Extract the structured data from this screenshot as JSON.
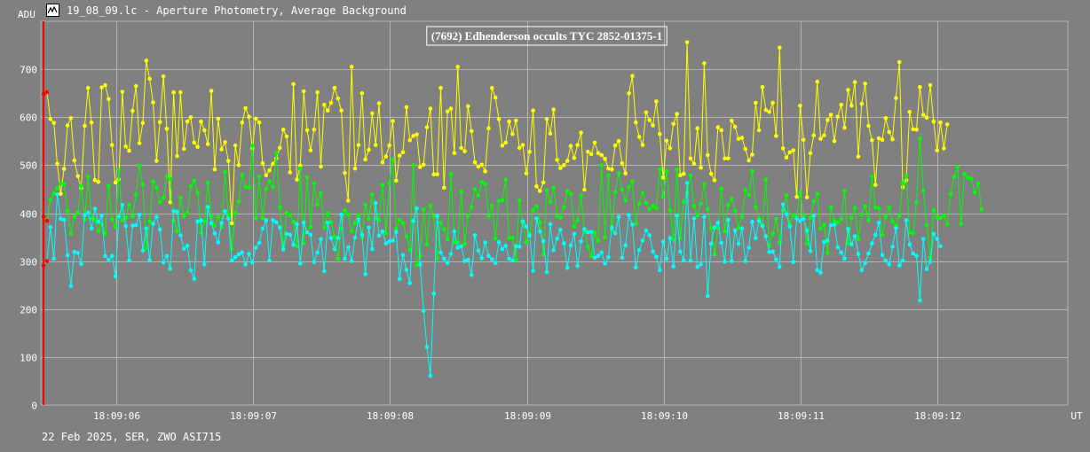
{
  "window": {
    "title": "19_08_09.lc - Aperture Photometry, Average Background",
    "icon": "chart-app-icon"
  },
  "footer": "22 Feb 2025, SER, ZWO ASI715",
  "colors": {
    "background": "#808080",
    "grid": "#b4b4b4",
    "series_yellow": "#ffff00",
    "series_green": "#00ff00",
    "series_cyan": "#00ffff",
    "marker": "#ff0000"
  },
  "chart_data": {
    "type": "line",
    "title": "(7692) Edhenderson occults TYC 2852-01375-1",
    "ylabel": "ADU",
    "xlabel": "UT",
    "ylim": [
      0,
      800
    ],
    "yticks": [
      0,
      100,
      200,
      300,
      400,
      500,
      600,
      700
    ],
    "xlim": [
      5.45,
      12.95
    ],
    "xticks": [
      {
        "t": 6,
        "label": "18:09:06"
      },
      {
        "t": 7,
        "label": "18:09:07"
      },
      {
        "t": 8,
        "label": "18:09:08"
      },
      {
        "t": 9,
        "label": "18:09:09"
      },
      {
        "t": 10,
        "label": "18:09:10"
      },
      {
        "t": 11,
        "label": "18:09:11"
      },
      {
        "t": 12,
        "label": "18:09:12"
      }
    ],
    "grid": true,
    "frame_start_marker_t": 5.47,
    "series": [
      {
        "color": "#ffff00",
        "t0": 5.47,
        "dt": 0.025,
        "values": [
          648,
          652,
          596,
          588,
          503,
          440,
          492,
          583,
          598,
          510,
          477,
          452,
          582,
          661,
          589,
          469,
          465,
          662,
          667,
          638,
          542,
          464,
          470,
          653,
          539,
          530,
          613,
          665,
          546,
          588,
          718,
          680,
          631,
          509,
          590,
          685,
          576,
          423,
          652,
          519,
          652,
          534,
          591,
          600,
          547,
          538,
          591,
          573,
          544,
          655,
          491,
          597,
          533,
          548,
          509,
          379,
          541,
          500,
          589,
          619,
          601,
          535,
          597,
          589,
          504,
          479,
          489,
          503,
          514,
          536,
          574,
          560,
          485,
          669,
          470,
          499,
          654,
          573,
          531,
          574,
          652,
          497,
          626,
          614,
          630,
          661,
          639,
          614,
          484,
          426,
          705,
          493,
          542,
          650,
          512,
          532,
          608,
          542,
          629,
          506,
          518,
          541,
          592,
          468,
          520,
          527,
          621,
          552,
          561,
          564,
          496,
          501,
          579,
          618,
          481,
          481,
          661,
          453,
          612,
          618,
          525,
          705,
          536,
          529,
          623,
          571,
          506,
          497,
          501,
          487,
          577,
          661,
          641,
          596,
          541,
          547,
          591,
          565,
          593,
          536,
          542,
          483,
          528,
          614,
          456,
          446,
          464,
          596,
          566,
          616,
          511,
          494,
          500,
          509,
          540,
          515,
          542,
          568,
          449,
          528,
          523,
          547,
          525,
          521,
          513,
          493,
          491,
          541,
          550,
          504,
          483,
          650,
          686,
          589,
          559,
          542,
          610,
          594,
          583,
          633,
          565,
          474,
          551,
          535,
          586,
          607,
          479,
          482,
          756,
          514,
          503,
          577,
          495,
          712,
          521,
          482,
          469,
          579,
          573,
          514,
          514,
          593,
          580,
          555,
          557,
          534,
          510,
          522,
          630,
          573,
          663,
          615,
          611,
          630,
          561,
          745,
          535,
          516,
          527,
          531,
          434,
          624,
          553,
          433,
          525,
          562,
          674,
          555,
          562,
          594,
          605,
          550,
          601,
          626,
          578,
          657,
          624,
          673,
          518,
          628,
          670,
          582,
          552,
          459,
          556,
          553,
          598,
          569,
          554,
          640,
          715,
          454,
          469,
          611,
          575,
          574,
          663,
          605,
          599,
          667,
          591,
          531,
          589,
          535,
          585
        ]
      },
      {
        "color": "#00ff00",
        "t0": 5.47,
        "dt": 0.025,
        "values": [
          393,
          384,
          428,
          441,
          452,
          462,
          461,
          404,
          357,
          393,
          401,
          457,
          387,
          476,
          389,
          387,
          363,
          377,
          357,
          457,
          387,
          372,
          490,
          385,
          390,
          418,
          393,
          439,
          499,
          460,
          327,
          383,
          466,
          453,
          423,
          432,
          477,
          471,
          385,
          362,
          432,
          393,
          401,
          456,
          468,
          442,
          359,
          383,
          463,
          394,
          374,
          392,
          371,
          486,
          397,
          325,
          400,
          424,
          480,
          455,
          453,
          541,
          389,
          476,
          390,
          450,
          466,
          454,
          525,
          413,
          330,
          401,
          396,
          382,
          331,
          493,
          337,
          475,
          371,
          462,
          418,
          441,
          370,
          400,
          381,
          352,
          305,
          367,
          406,
          397,
          362,
          380,
          396,
          350,
          417,
          388,
          439,
          389,
          385,
          459,
          358,
          462,
          512,
          367,
          386,
          379,
          352,
          323,
          500,
          291,
          310,
          408,
          335,
          416,
          393,
          306,
          381,
          366,
          346,
          482,
          339,
          339,
          445,
          336,
          395,
          413,
          450,
          437,
          465,
          461,
          394,
          416,
          347,
          425,
          427,
          470,
          348,
          349,
          303,
          426,
          380,
          340,
          358,
          406,
          414,
          381,
          314,
          448,
          423,
          453,
          394,
          391,
          413,
          446,
          440,
          372,
          385,
          437,
          362,
          330,
          311,
          359,
          342,
          500,
          350,
          479,
          364,
          444,
          483,
          449,
          426,
          454,
          466,
          378,
          420,
          442,
          421,
          408,
          415,
          410,
          491,
          434,
          487,
          406,
          344,
          491,
          348,
          424,
          443,
          478,
          415,
          395,
          420,
          461,
          408,
          369,
          314,
          369,
          451,
          362,
          417,
          430,
          405,
          369,
          392,
          448,
          438,
          488,
          413,
          389,
          375,
          470,
          331,
          357,
          388,
          339,
          406,
          437,
          376,
          396,
          394,
          443,
          395,
          336,
          390,
          425,
          440,
          368,
          376,
          317,
          412,
          384,
          381,
          387,
          446,
          337,
          390,
          411,
          346,
          398,
          414,
          385,
          477,
          412,
          410,
          354,
          393,
          412,
          383,
          375,
          395,
          462,
          478,
          360,
          358,
          422,
          556,
          447,
          375,
          307,
          406,
          391,
          390,
          395,
          377,
          440,
          476,
          496,
          378,
          482,
          474,
          472,
          443,
          462,
          408
        ]
      },
      {
        "color": "#00ffff",
        "t0": 5.47,
        "dt": 0.025,
        "values": [
          291,
          300,
          371,
          305,
          439,
          388,
          386,
          312,
          248,
          319,
          317,
          294,
          396,
          401,
          368,
          409,
          382,
          395,
          311,
          303,
          311,
          268,
          393,
          417,
          373,
          301,
          374,
          375,
          397,
          322,
          368,
          302,
          378,
          392,
          366,
          297,
          311,
          284,
          404,
          403,
          354,
          326,
          332,
          281,
          263,
          383,
          385,
          293,
          413,
          379,
          358,
          339,
          379,
          404,
          389,
          301,
          308,
          314,
          318,
          293,
          315,
          297,
          328,
          338,
          368,
          385,
          301,
          385,
          381,
          370,
          324,
          357,
          355,
          334,
          377,
          295,
          380,
          360,
          355,
          298,
          318,
          346,
          279,
          380,
          348,
          325,
          348,
          397,
          305,
          329,
          300,
          349,
          387,
          355,
          273,
          370,
          325,
          421,
          353,
          362,
          337,
          341,
          343,
          361,
          263,
          313,
          282,
          254,
          384,
          410,
          293,
          196,
          121,
          61,
          232,
          394,
          318,
          305,
          296,
          315,
          362,
          328,
          331,
          300,
          303,
          271,
          354,
          322,
          306,
          339,
          311,
          304,
          296,
          340,
          325,
          332,
          305,
          301,
          331,
          330,
          383,
          372,
          353,
          280,
          389,
          362,
          342,
          277,
          377,
          323,
          347,
          365,
          337,
          286,
          333,
          357,
          290,
          341,
          367,
          360,
          361,
          307,
          311,
          318,
          295,
          308,
          370,
          358,
          392,
          307,
          333,
          396,
          376,
          287,
          323,
          343,
          364,
          354,
          320,
          309,
          281,
          341,
          305,
          348,
          289,
          395,
          320,
          301,
          463,
          301,
          389,
          288,
          293,
          392,
          227,
          336,
          370,
          380,
          338,
          299,
          386,
          300,
          364,
          336,
          368,
          300,
          328,
          382,
          348,
          384,
          373,
          352,
          319,
          320,
          304,
          288,
          418,
          398,
          372,
          298,
          389,
          384,
          388,
          364,
          321,
          395,
          281,
          276,
          340,
          343,
          375,
          376,
          329,
          318,
          305,
          367,
          335,
          352,
          315,
          281,
          296,
          316,
          337,
          355,
          380,
          313,
          301,
          293,
          330,
          369,
          291,
          301,
          385,
          335,
          316,
          311,
          218,
          346,
          283,
          299,
          357,
          346,
          331
        ]
      }
    ]
  }
}
